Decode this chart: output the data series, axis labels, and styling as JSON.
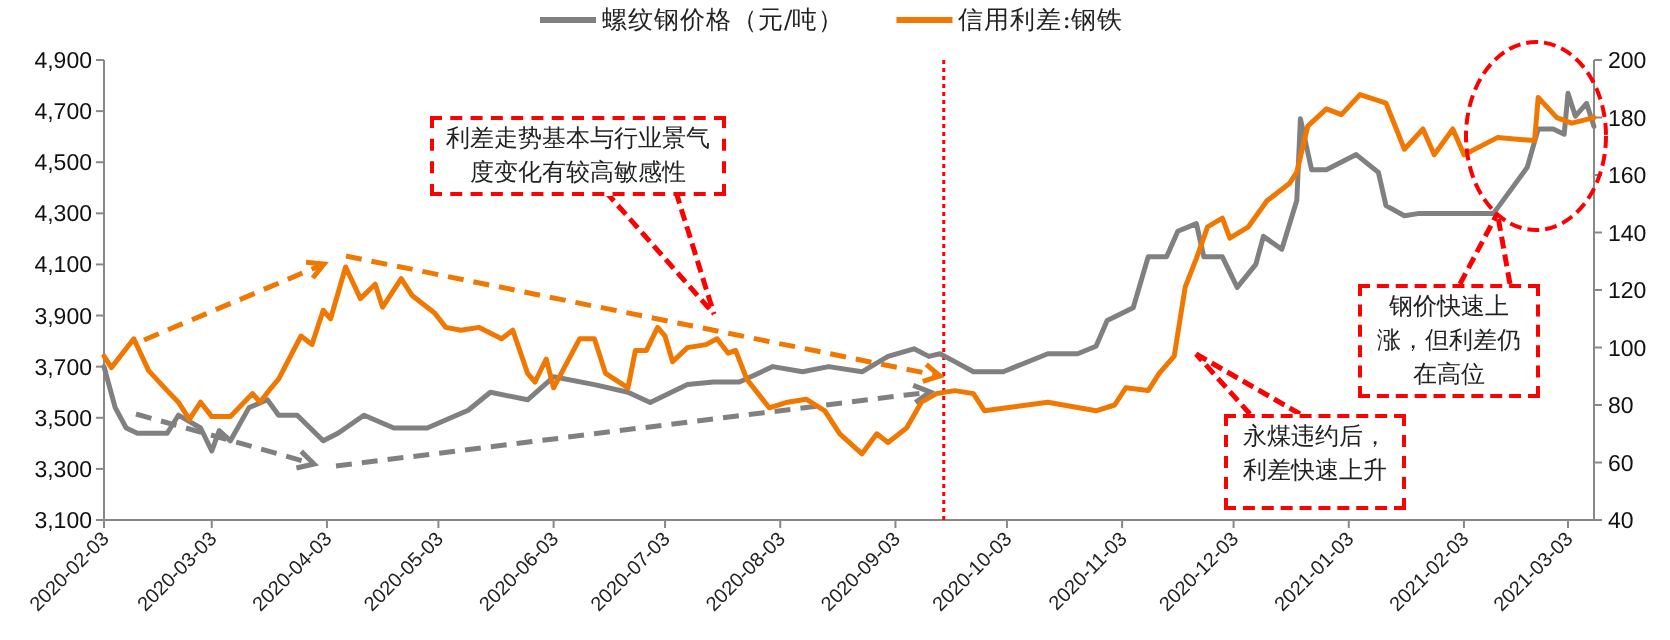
{
  "chart_data": {
    "type": "line",
    "legend": "top",
    "xlim": [
      "2020-02-03",
      "2021-03-10"
    ],
    "xticks": [
      "2020-02-03",
      "2020-03-03",
      "2020-04-03",
      "2020-05-03",
      "2020-06-03",
      "2020-07-03",
      "2020-08-03",
      "2020-09-03",
      "2020-10-03",
      "2020-11-03",
      "2020-12-03",
      "2021-01-03",
      "2021-02-03",
      "2021-03-03"
    ],
    "ylim": [
      3100,
      4900
    ],
    "yticks": [
      {
        "value": 3100,
        "label": "3,100"
      },
      {
        "value": 3300,
        "label": "3,300"
      },
      {
        "value": 3500,
        "label": "3,500"
      },
      {
        "value": 3700,
        "label": "3,700"
      },
      {
        "value": 3900,
        "label": "3,900"
      },
      {
        "value": 4100,
        "label": "4,100"
      },
      {
        "value": 4300,
        "label": "4,300"
      },
      {
        "value": 4500,
        "label": "4,500"
      },
      {
        "value": 4700,
        "label": "4,700"
      },
      {
        "value": 4900,
        "label": "4,900"
      }
    ],
    "y2lim": [
      40,
      200
    ],
    "y2ticks": [
      40,
      60,
      80,
      100,
      120,
      140,
      160,
      180,
      200
    ],
    "series": [
      {
        "name": "螺纹钢价格（元/吨）",
        "color": "#808080",
        "x": [
          "2020-02-03",
          "2020-02-06",
          "2020-02-09",
          "2020-02-12",
          "2020-02-20",
          "2020-02-23",
          "2020-02-29",
          "2020-03-03",
          "2020-03-05",
          "2020-03-08",
          "2020-03-13",
          "2020-03-18",
          "2020-03-21",
          "2020-03-26",
          "2020-04-02",
          "2020-04-06",
          "2020-04-13",
          "2020-04-21",
          "2020-04-30",
          "2020-05-11",
          "2020-05-17",
          "2020-05-27",
          "2020-06-03",
          "2020-06-14",
          "2020-06-23",
          "2020-06-29",
          "2020-07-09",
          "2020-07-16",
          "2020-07-23",
          "2020-08-01",
          "2020-08-09",
          "2020-08-16",
          "2020-08-25",
          "2020-09-01",
          "2020-09-08",
          "2020-09-12",
          "2020-09-15",
          "2020-09-19",
          "2020-09-24",
          "2020-10-02",
          "2020-10-07",
          "2020-10-14",
          "2020-10-22",
          "2020-10-27",
          "2020-10-30",
          "2020-11-06",
          "2020-11-10",
          "2020-11-15",
          "2020-11-18",
          "2020-11-23",
          "2020-11-25",
          "2020-11-30",
          "2020-12-04",
          "2020-12-09",
          "2020-12-11",
          "2020-12-16",
          "2020-12-20",
          "2020-12-21",
          "2020-12-24",
          "2020-12-28",
          "2021-01-05",
          "2021-01-11",
          "2021-01-13",
          "2021-01-18",
          "2021-01-22",
          "2021-01-28",
          "2021-02-11",
          "2021-02-20",
          "2021-02-23",
          "2021-02-27",
          "2021-03-02",
          "2021-03-03",
          "2021-03-05",
          "2021-03-08",
          "2021-03-10"
        ],
        "values": [
          3700,
          3540,
          3460,
          3440,
          3440,
          3510,
          3460,
          3370,
          3450,
          3410,
          3540,
          3570,
          3510,
          3510,
          3410,
          3440,
          3510,
          3460,
          3460,
          3530,
          3600,
          3570,
          3660,
          3630,
          3600,
          3560,
          3630,
          3640,
          3640,
          3700,
          3680,
          3700,
          3680,
          3740,
          3770,
          3740,
          3750,
          3720,
          3680,
          3680,
          3710,
          3750,
          3750,
          3780,
          3880,
          3930,
          4130,
          4130,
          4230,
          4260,
          4130,
          4130,
          4010,
          4100,
          4210,
          4160,
          4350,
          4670,
          4470,
          4470,
          4530,
          4460,
          4330,
          4290,
          4300,
          4300,
          4300,
          4480,
          4630,
          4630,
          4610,
          4770,
          4680,
          4730,
          4640
        ]
      },
      {
        "name": "信用利差:钢铁",
        "color": "#f07800",
        "axis": "y2",
        "x": [
          "2020-02-03",
          "2020-02-05",
          "2020-02-11",
          "2020-02-15",
          "2020-02-20",
          "2020-02-23",
          "2020-02-26",
          "2020-02-29",
          "2020-03-03",
          "2020-03-08",
          "2020-03-14",
          "2020-03-16",
          "2020-03-19",
          "2020-03-21",
          "2020-03-27",
          "2020-03-30",
          "2020-04-02",
          "2020-04-04",
          "2020-04-08",
          "2020-04-12",
          "2020-04-16",
          "2020-04-18",
          "2020-04-23",
          "2020-04-26",
          "2020-05-02",
          "2020-05-05",
          "2020-05-09",
          "2020-05-14",
          "2020-05-20",
          "2020-05-23",
          "2020-05-27",
          "2020-05-29",
          "2020-06-01",
          "2020-06-03",
          "2020-06-10",
          "2020-06-14",
          "2020-06-17",
          "2020-06-23",
          "2020-06-25",
          "2020-06-28",
          "2020-07-01",
          "2020-07-03",
          "2020-07-05",
          "2020-07-09",
          "2020-07-14",
          "2020-07-17",
          "2020-07-20",
          "2020-07-22",
          "2020-07-25",
          "2020-07-31",
          "2020-08-05",
          "2020-08-10",
          "2020-08-15",
          "2020-08-19",
          "2020-08-25",
          "2020-08-29",
          "2020-09-01",
          "2020-09-06",
          "2020-09-10",
          "2020-09-14",
          "2020-09-19",
          "2020-09-24",
          "2020-09-27",
          "2020-10-03",
          "2020-10-14",
          "2020-10-27",
          "2020-11-01",
          "2020-11-04",
          "2020-11-10",
          "2020-11-13",
          "2020-11-17",
          "2020-11-20",
          "2020-11-23",
          "2020-11-26",
          "2020-11-30",
          "2020-12-02",
          "2020-12-07",
          "2020-12-12",
          "2020-12-18",
          "2020-12-20",
          "2020-12-23",
          "2020-12-28",
          "2021-01-01",
          "2021-01-06",
          "2021-01-13",
          "2021-01-18",
          "2021-01-23",
          "2021-01-26",
          "2021-01-31",
          "2021-02-03",
          "2021-02-09",
          "2021-02-12",
          "2021-02-22",
          "2021-02-23",
          "2021-02-28",
          "2021-03-04",
          "2021-03-10"
        ],
        "values": [
          97,
          93,
          103,
          92,
          85,
          81,
          75,
          81,
          76,
          76,
          84,
          81,
          86,
          89,
          104,
          101,
          113,
          110,
          128,
          117,
          122,
          114,
          124,
          118,
          112,
          107,
          106,
          107,
          103,
          106,
          91,
          88,
          96,
          86,
          103,
          103,
          91,
          86,
          99,
          99,
          107,
          104,
          95,
          100,
          101,
          103,
          98,
          99,
          89,
          79,
          81,
          82,
          78,
          70,
          63,
          70,
          67,
          72,
          81,
          84,
          85,
          84,
          78,
          79,
          81,
          78,
          80,
          86,
          85,
          91,
          97,
          121,
          131,
          142,
          145,
          138,
          142,
          151,
          157,
          161,
          177,
          183,
          181,
          188,
          185,
          169,
          176,
          167,
          176,
          167,
          171,
          173,
          172,
          187,
          180,
          178,
          180
        ]
      }
    ],
    "ref_lines": [
      {
        "axis": "x",
        "value": "2020-09-16",
        "color": "#ff0000",
        "line_style": "dotted"
      }
    ],
    "annotations": [
      "利差走势基本与行业景气度变化有较高敏感性",
      "永煤违约后，利差快速上升",
      {
        "text": "钢价快速上涨，但利差仍在高位",
        "x": "2021-02-12",
        "y": 4300
      }
    ]
  }
}
